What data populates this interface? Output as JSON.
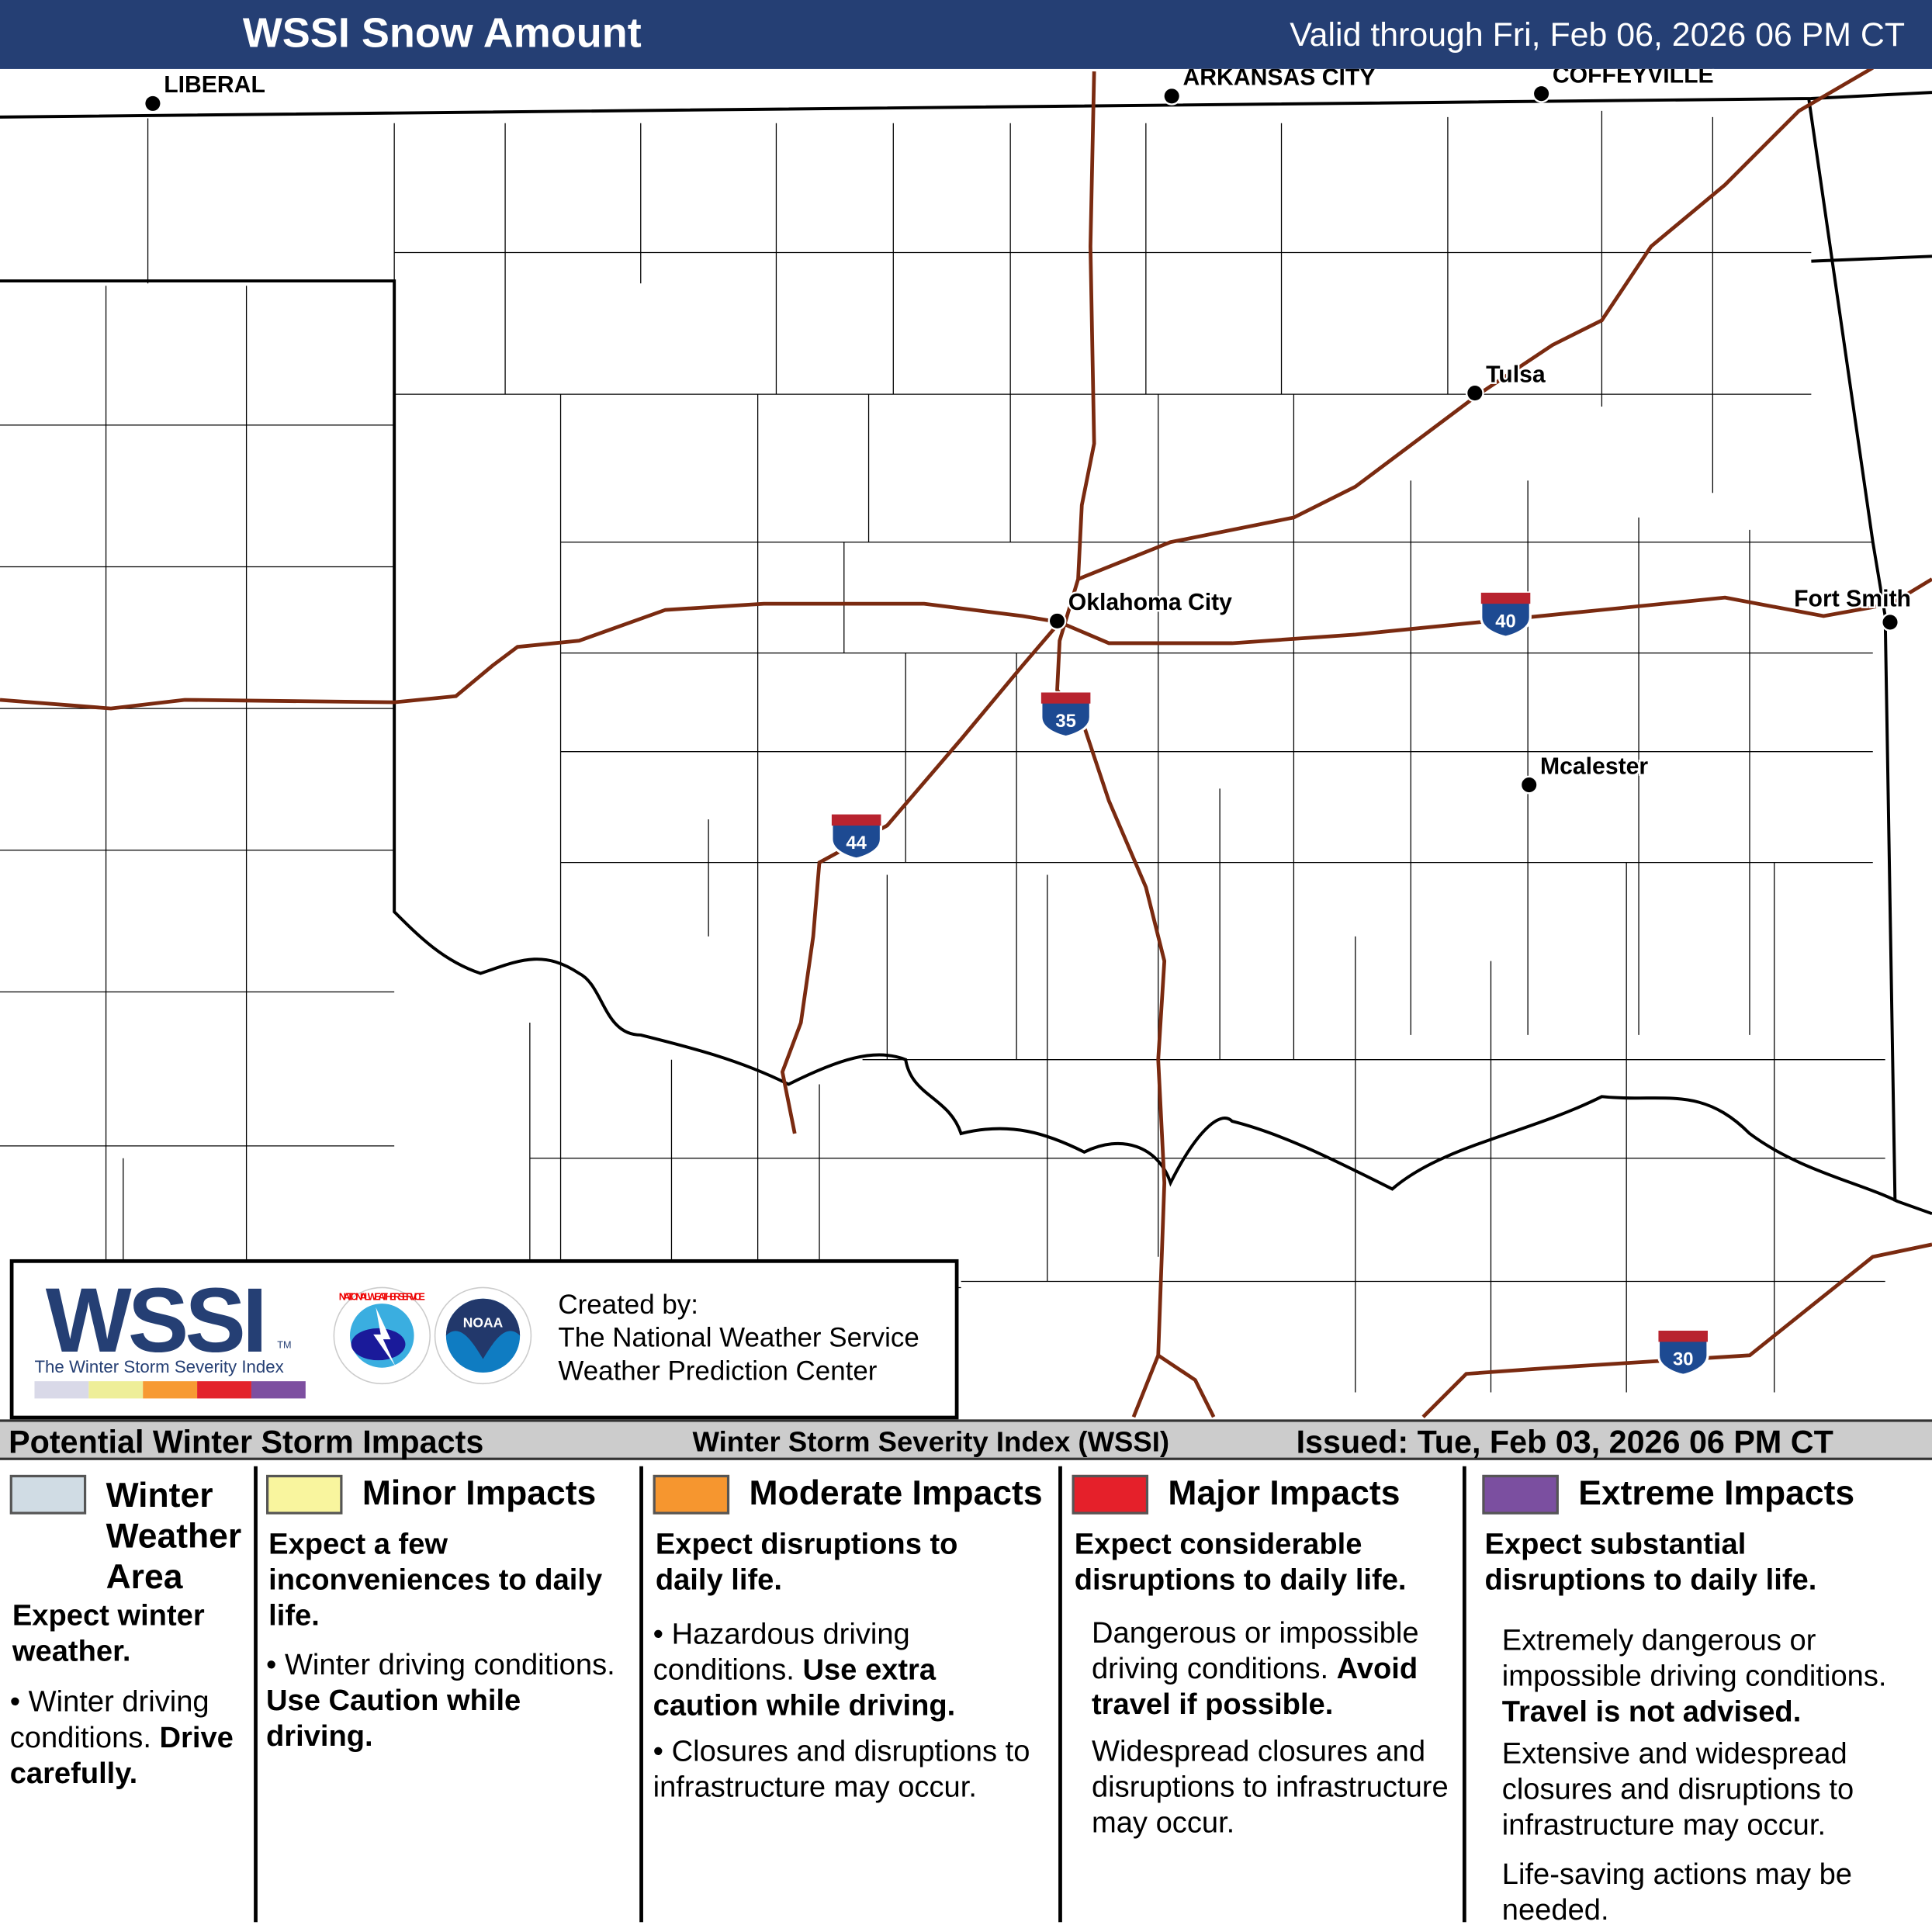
{
  "header": {
    "title": "WSSI Snow Amount",
    "valid": "Valid through Fri, Feb 06, 2026 06 PM CT"
  },
  "cities": [
    {
      "name": "LIBERAL"
    },
    {
      "name": "ARKANSAS CITY"
    },
    {
      "name": "COFFEYVILLE"
    },
    {
      "name": "Tulsa"
    },
    {
      "name": "Oklahoma City"
    },
    {
      "name": "Fort Smith"
    },
    {
      "name": "Mcalester"
    }
  ],
  "highways": [
    {
      "number": "40"
    },
    {
      "number": "35"
    },
    {
      "number": "44"
    },
    {
      "number": "30"
    }
  ],
  "logo": {
    "wssi": "WSSI",
    "tm": "TM",
    "subtitle": "The Winter Storm Severity Index",
    "scale_colors": [
      "#d9d9e8",
      "#eeee99",
      "#f79a33",
      "#e3232b",
      "#7d4fa0"
    ],
    "nws": "NATIONAL WEATHER SERVICE",
    "noaa": "NOAA",
    "created_by": "Created by:",
    "org1": "The National Weather Service",
    "org2": "Weather Prediction Center"
  },
  "impacts_bar": {
    "title": "Potential Winter Storm Impacts",
    "index": "Winter Storm Severity Index (WSSI)",
    "issued": "Issued: Tue, Feb 03, 2026 06 PM CT"
  },
  "categories": [
    {
      "color": "#d0dce4",
      "title": "Winter Weather Area",
      "lead": "Expect winter weather.",
      "b1": "Winter driving conditions.",
      "b1b": "Drive carefully."
    },
    {
      "color": "#f9f59e",
      "title": "Minor Impacts",
      "lead": "Expect a few inconveniences to daily life.",
      "b1": "Winter driving conditions.",
      "b1b": "Use Caution while driving."
    },
    {
      "color": "#f6962f",
      "title": "Moderate Impacts",
      "lead": "Expect disruptions to daily life.",
      "b1": "Hazardous driving conditions.",
      "b1b": "Use extra caution while driving.",
      "b2": "Closures and disruptions to infrastructure may occur."
    },
    {
      "color": "#e5202a",
      "title": "Major Impacts",
      "lead": "Expect considerable disruptions to daily life.",
      "b1": "Dangerous or impossible driving conditions.",
      "b1b": "Avoid travel if possible.",
      "b2": "Widespread closures and disruptions to infrastructure may occur."
    },
    {
      "color": "#7b4fa0",
      "title": "Extreme Impacts",
      "lead": "Expect substantial disruptions to daily life.",
      "b1": "Extremely dangerous or impossible driving conditions.",
      "b1b": "Travel is not advised.",
      "b2": "Extensive and widespread closures and disruptions to infrastructure may occur.",
      "b3": "Life-saving actions may be needed."
    }
  ]
}
